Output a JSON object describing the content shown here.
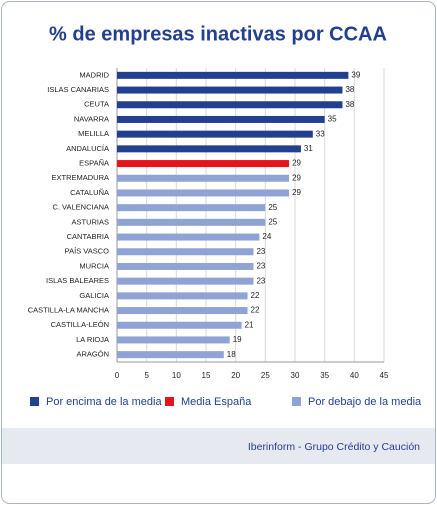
{
  "chart_data": {
    "type": "barh",
    "title": "% de empresas inactivas por CCAA",
    "categories": [
      "MADRID",
      "ISLAS CANARIAS",
      "CEUTA",
      "NAVARRA",
      "MELILLA",
      "ANDALUCÍA",
      "ESPAÑA",
      "EXTREMADURA",
      "CATALUÑA",
      "C. VALENCIANA",
      "ASTURIAS",
      "CANTABRIA",
      "PAÍS VASCO",
      "MURCIA",
      "ISLAS BALEARES",
      "GALICIA",
      "CASTILLA-LA MANCHA",
      "CASTILLA-LEÓN",
      "LA RIOJA",
      "ARAGÓN"
    ],
    "series": [
      {
        "name": "Por encima de la media",
        "color": "#23408e",
        "values": [
          39,
          38,
          38,
          35,
          33,
          31,
          null,
          null,
          null,
          null,
          null,
          null,
          null,
          null,
          null,
          null,
          null,
          null,
          null,
          null
        ]
      },
      {
        "name": "Media España",
        "color": "#e8141b",
        "values": [
          null,
          null,
          null,
          null,
          null,
          null,
          29,
          null,
          null,
          null,
          null,
          null,
          null,
          null,
          null,
          null,
          null,
          null,
          null,
          null
        ]
      },
      {
        "name": "Por debajo de la media",
        "color": "#8fa3d4",
        "values": [
          null,
          null,
          null,
          null,
          null,
          null,
          null,
          29,
          29,
          25,
          25,
          24,
          23,
          23,
          23,
          22,
          22,
          21,
          19,
          18
        ]
      }
    ],
    "xlim": [
      0,
      45
    ],
    "xticks": [
      0,
      5,
      10,
      15,
      20,
      25,
      30,
      35,
      40,
      45
    ],
    "grid": true,
    "legend": "bottom",
    "source": "Iberinform - Grupo Crédito y Caución"
  }
}
